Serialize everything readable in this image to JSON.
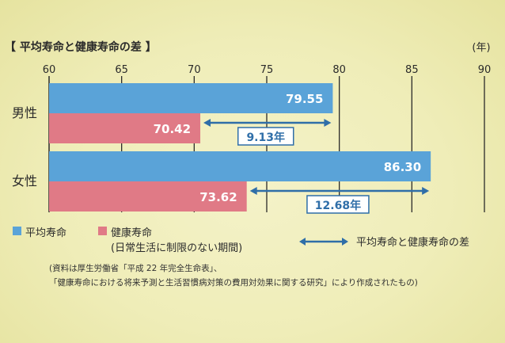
{
  "chart_data": {
    "type": "bar",
    "title": "【 平均寿命と健康寿命の差 】",
    "unit": "(年)",
    "xlim": [
      60,
      90
    ],
    "ticks": [
      60,
      65,
      70,
      75,
      80,
      85,
      90
    ],
    "categories": [
      "男性",
      "女性"
    ],
    "series": [
      {
        "name": "平均寿命",
        "values": [
          79.55,
          86.3
        ],
        "labels": [
          "79.55",
          "86.30"
        ],
        "color": "#5aa3d8"
      },
      {
        "name": "健康寿命",
        "values": [
          70.42,
          73.62
        ],
        "labels": [
          "70.42",
          "73.62"
        ],
        "color": "#e07a86"
      }
    ],
    "differences": [
      {
        "category": "男性",
        "label": "9.13年",
        "from": 70.42,
        "to": 79.55
      },
      {
        "category": "女性",
        "label": "12.68年",
        "from": 73.62,
        "to": 86.3
      }
    ],
    "legend_position": "bottom",
    "grid": true
  },
  "legend": {
    "avg": "平均寿命",
    "healthy": "健康寿命",
    "healthy_sub": "(日常生活に制限のない期間)",
    "diff": "平均寿命と健康寿命の差"
  },
  "note": {
    "line1": "(資料は厚生労働省「平成 22 年完全生命表」、",
    "line2": "「健康寿命における将来予測と生活習慣病対策の費用対効果に関する研究」により作成されたもの)"
  },
  "colors": {
    "avg": "#5aa3d8",
    "healthy": "#e07a86",
    "arrow": "#2f6ea8",
    "grid": "#2a2a2a"
  }
}
